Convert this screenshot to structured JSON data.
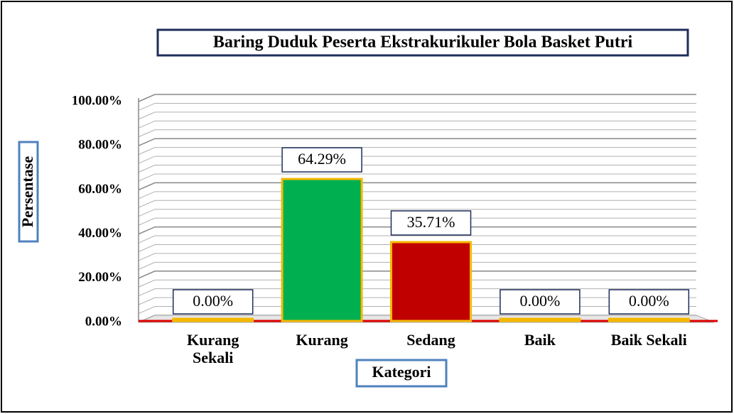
{
  "chart_data": {
    "type": "bar",
    "title": "Baring Duduk Peserta Ekstrakurikuler Bola Basket Putri",
    "y_label": "Persentase",
    "x_label": "Kategori",
    "categories": [
      "Kurang Sekali",
      "Kurang",
      "Sedang",
      "Baik",
      "Baik Sekali"
    ],
    "values": [
      0,
      64.29,
      35.71,
      0,
      0
    ],
    "value_labels": [
      "0.00%",
      "64.29%",
      "35.71%",
      "0.00%",
      "0.00%"
    ],
    "colors": [
      "#4f81bd",
      "#00b050",
      "#c00000",
      "#4f81bd",
      "#4f81bd"
    ],
    "edge_color": "#f5b800",
    "ylim": [
      0,
      100
    ],
    "yticks": [
      {
        "value": 0,
        "label": "0.00%"
      },
      {
        "value": 20,
        "label": "20.00%"
      },
      {
        "value": 40,
        "label": "40.00%"
      },
      {
        "value": 60,
        "label": "60.00%"
      },
      {
        "value": 80,
        "label": "80.00%"
      },
      {
        "value": 100,
        "label": "100.00%"
      }
    ],
    "minor_yticks": [
      4,
      8,
      12,
      16,
      24,
      28,
      32,
      36,
      44,
      48,
      52,
      56,
      64,
      68,
      72,
      76,
      84,
      88,
      92,
      96
    ],
    "grid": true
  }
}
